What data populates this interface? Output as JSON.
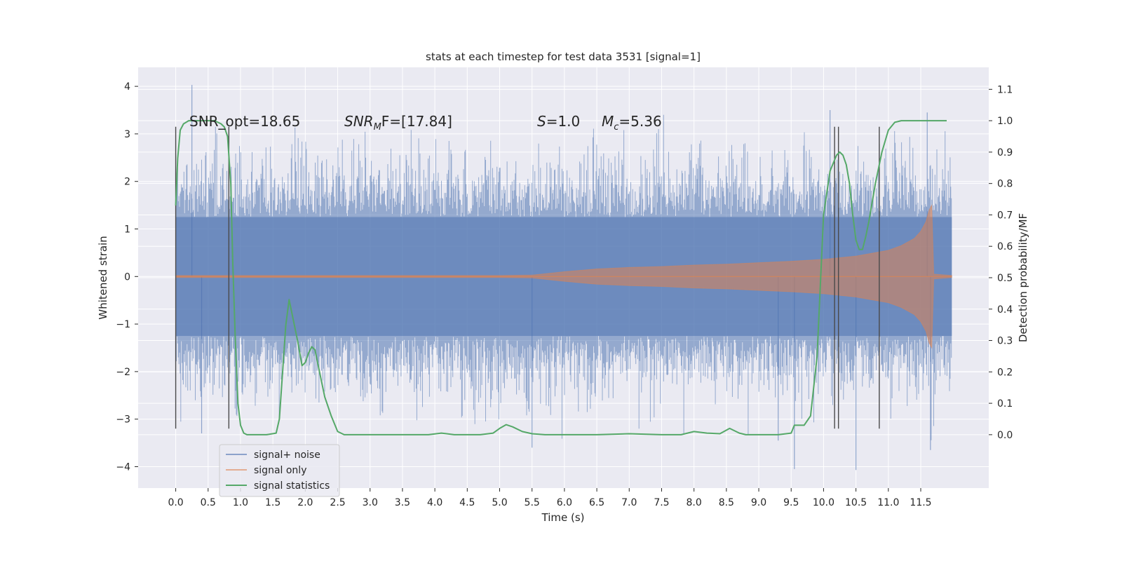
{
  "chart_data": {
    "type": "line",
    "title": "stats at each timestep for test data 3531 [signal=1]",
    "xlabel": "Time (s)",
    "ylabel": "Whitened strain",
    "y2label": "Detection probability/MF",
    "xlim": [
      -0.58,
      12.55
    ],
    "ylim": [
      -4.45,
      4.4
    ],
    "y2lim": [
      -0.17,
      1.17
    ],
    "xticks": [
      0.0,
      0.5,
      1.0,
      1.5,
      2.0,
      2.5,
      3.0,
      3.5,
      4.0,
      4.5,
      5.0,
      5.5,
      6.0,
      6.5,
      7.0,
      7.5,
      8.0,
      8.5,
      9.0,
      9.5,
      10.0,
      10.5,
      11.0,
      11.5
    ],
    "xtick_labels": [
      "0.0",
      "0.5",
      "1.0",
      "1.5",
      "2.0",
      "2.5",
      "3.0",
      "3.5",
      "4.0",
      "4.5",
      "5.0",
      "5.5",
      "6.0",
      "6.5",
      "7.0",
      "7.5",
      "8.0",
      "8.5",
      "9.0",
      "9.5",
      "10.0",
      "10.5",
      "11.0",
      "11.5"
    ],
    "yticks": [
      -4,
      -3,
      -2,
      -1,
      0,
      1,
      2,
      3,
      4
    ],
    "ytick_labels": [
      "−4",
      "−3",
      "−2",
      "−1",
      "0",
      "1",
      "2",
      "3",
      "4"
    ],
    "y2ticks": [
      0.0,
      0.1,
      0.2,
      0.3,
      0.4,
      0.5,
      0.6,
      0.7,
      0.8,
      0.9,
      1.0,
      1.1
    ],
    "y2tick_labels": [
      "0.0",
      "0.1",
      "0.2",
      "0.3",
      "0.4",
      "0.5",
      "0.6",
      "0.7",
      "0.8",
      "0.9",
      "1.0",
      "1.1"
    ],
    "grid": true,
    "legend_position": "lower-left",
    "annotations": {
      "snr_opt": "SNR_opt=18.65",
      "snr_mf_label": "SNR",
      "snr_mf_sub": "M",
      "snr_mf_rest": "F=[17.84]",
      "s_label": "S",
      "s_value": "=1.0",
      "mc_label": "M",
      "mc_sub": "c",
      "mc_value": "=5.36"
    },
    "vertical_markers_x": [
      0.0,
      0.82,
      10.17,
      10.23,
      10.86
    ],
    "vertical_marker_yrange": [
      -3.2,
      3.15
    ],
    "series": [
      {
        "name": "signal+ noise",
        "axis": "left",
        "color": "#4c72b0",
        "noise_envelope": {
          "x_start": 0.0,
          "x_end": 11.98,
          "core_amplitude": 1.25,
          "typical_peak": 2.2,
          "max_value": 4.03,
          "min_value": -4.07
        }
      },
      {
        "name": "signal only",
        "axis": "left",
        "color": "#dd8452",
        "envelope": {
          "x": [
            0.0,
            1.0,
            2.0,
            3.0,
            4.0,
            5.0,
            5.5,
            6.0,
            6.5,
            7.0,
            7.5,
            8.0,
            8.5,
            9.0,
            9.5,
            10.0,
            10.5,
            11.0,
            11.2,
            11.4,
            11.5,
            11.58,
            11.63,
            11.67,
            11.7,
            11.98
          ],
          "amplitude": [
            0.02,
            0.02,
            0.02,
            0.02,
            0.02,
            0.02,
            0.03,
            0.1,
            0.16,
            0.19,
            0.21,
            0.24,
            0.26,
            0.29,
            0.32,
            0.36,
            0.43,
            0.55,
            0.65,
            0.8,
            0.95,
            1.15,
            1.4,
            1.5,
            0.05,
            0.02
          ]
        }
      },
      {
        "name": "signal statistics",
        "axis": "right",
        "color": "#55a868",
        "x": [
          0.0,
          0.03,
          0.07,
          0.12,
          0.2,
          0.3,
          0.4,
          0.5,
          0.6,
          0.7,
          0.75,
          0.8,
          0.85,
          0.88,
          0.92,
          0.96,
          1.0,
          1.05,
          1.1,
          1.2,
          1.4,
          1.55,
          1.6,
          1.65,
          1.7,
          1.75,
          1.8,
          1.88,
          1.95,
          2.0,
          2.05,
          2.1,
          2.15,
          2.2,
          2.3,
          2.4,
          2.5,
          2.55,
          2.6,
          2.7,
          3.0,
          3.5,
          3.9,
          4.1,
          4.3,
          4.5,
          4.7,
          4.9,
          5.0,
          5.1,
          5.2,
          5.35,
          5.5,
          5.7,
          6.0,
          6.5,
          7.0,
          7.5,
          7.8,
          8.0,
          8.2,
          8.4,
          8.55,
          8.7,
          8.8,
          9.0,
          9.3,
          9.5,
          9.55,
          9.6,
          9.7,
          9.8,
          9.9,
          10.0,
          10.1,
          10.2,
          10.25,
          10.3,
          10.35,
          10.4,
          10.45,
          10.5,
          10.55,
          10.6,
          10.65,
          10.7,
          10.8,
          10.9,
          11.0,
          11.1,
          11.2,
          11.5,
          11.7,
          11.9
        ],
        "values": [
          0.73,
          0.88,
          0.97,
          0.99,
          1.0,
          1.0,
          1.0,
          1.0,
          1.0,
          0.99,
          0.98,
          0.95,
          0.8,
          0.55,
          0.3,
          0.1,
          0.03,
          0.005,
          0.0,
          0.0,
          0.0,
          0.005,
          0.05,
          0.2,
          0.35,
          0.43,
          0.38,
          0.3,
          0.22,
          0.23,
          0.26,
          0.28,
          0.27,
          0.22,
          0.12,
          0.06,
          0.01,
          0.005,
          0.0,
          0.0,
          0.0,
          0.0,
          0.0,
          0.005,
          0.0,
          0.0,
          0.0,
          0.005,
          0.02,
          0.032,
          0.025,
          0.01,
          0.003,
          0.0,
          0.0,
          0.0,
          0.003,
          0.0,
          0.0,
          0.01,
          0.005,
          0.003,
          0.02,
          0.005,
          0.0,
          0.0,
          0.0,
          0.005,
          0.03,
          0.03,
          0.03,
          0.06,
          0.25,
          0.7,
          0.84,
          0.89,
          0.9,
          0.89,
          0.86,
          0.8,
          0.7,
          0.62,
          0.59,
          0.59,
          0.63,
          0.68,
          0.8,
          0.9,
          0.97,
          0.995,
          1.0,
          1.0,
          1.0,
          1.0
        ]
      }
    ]
  }
}
